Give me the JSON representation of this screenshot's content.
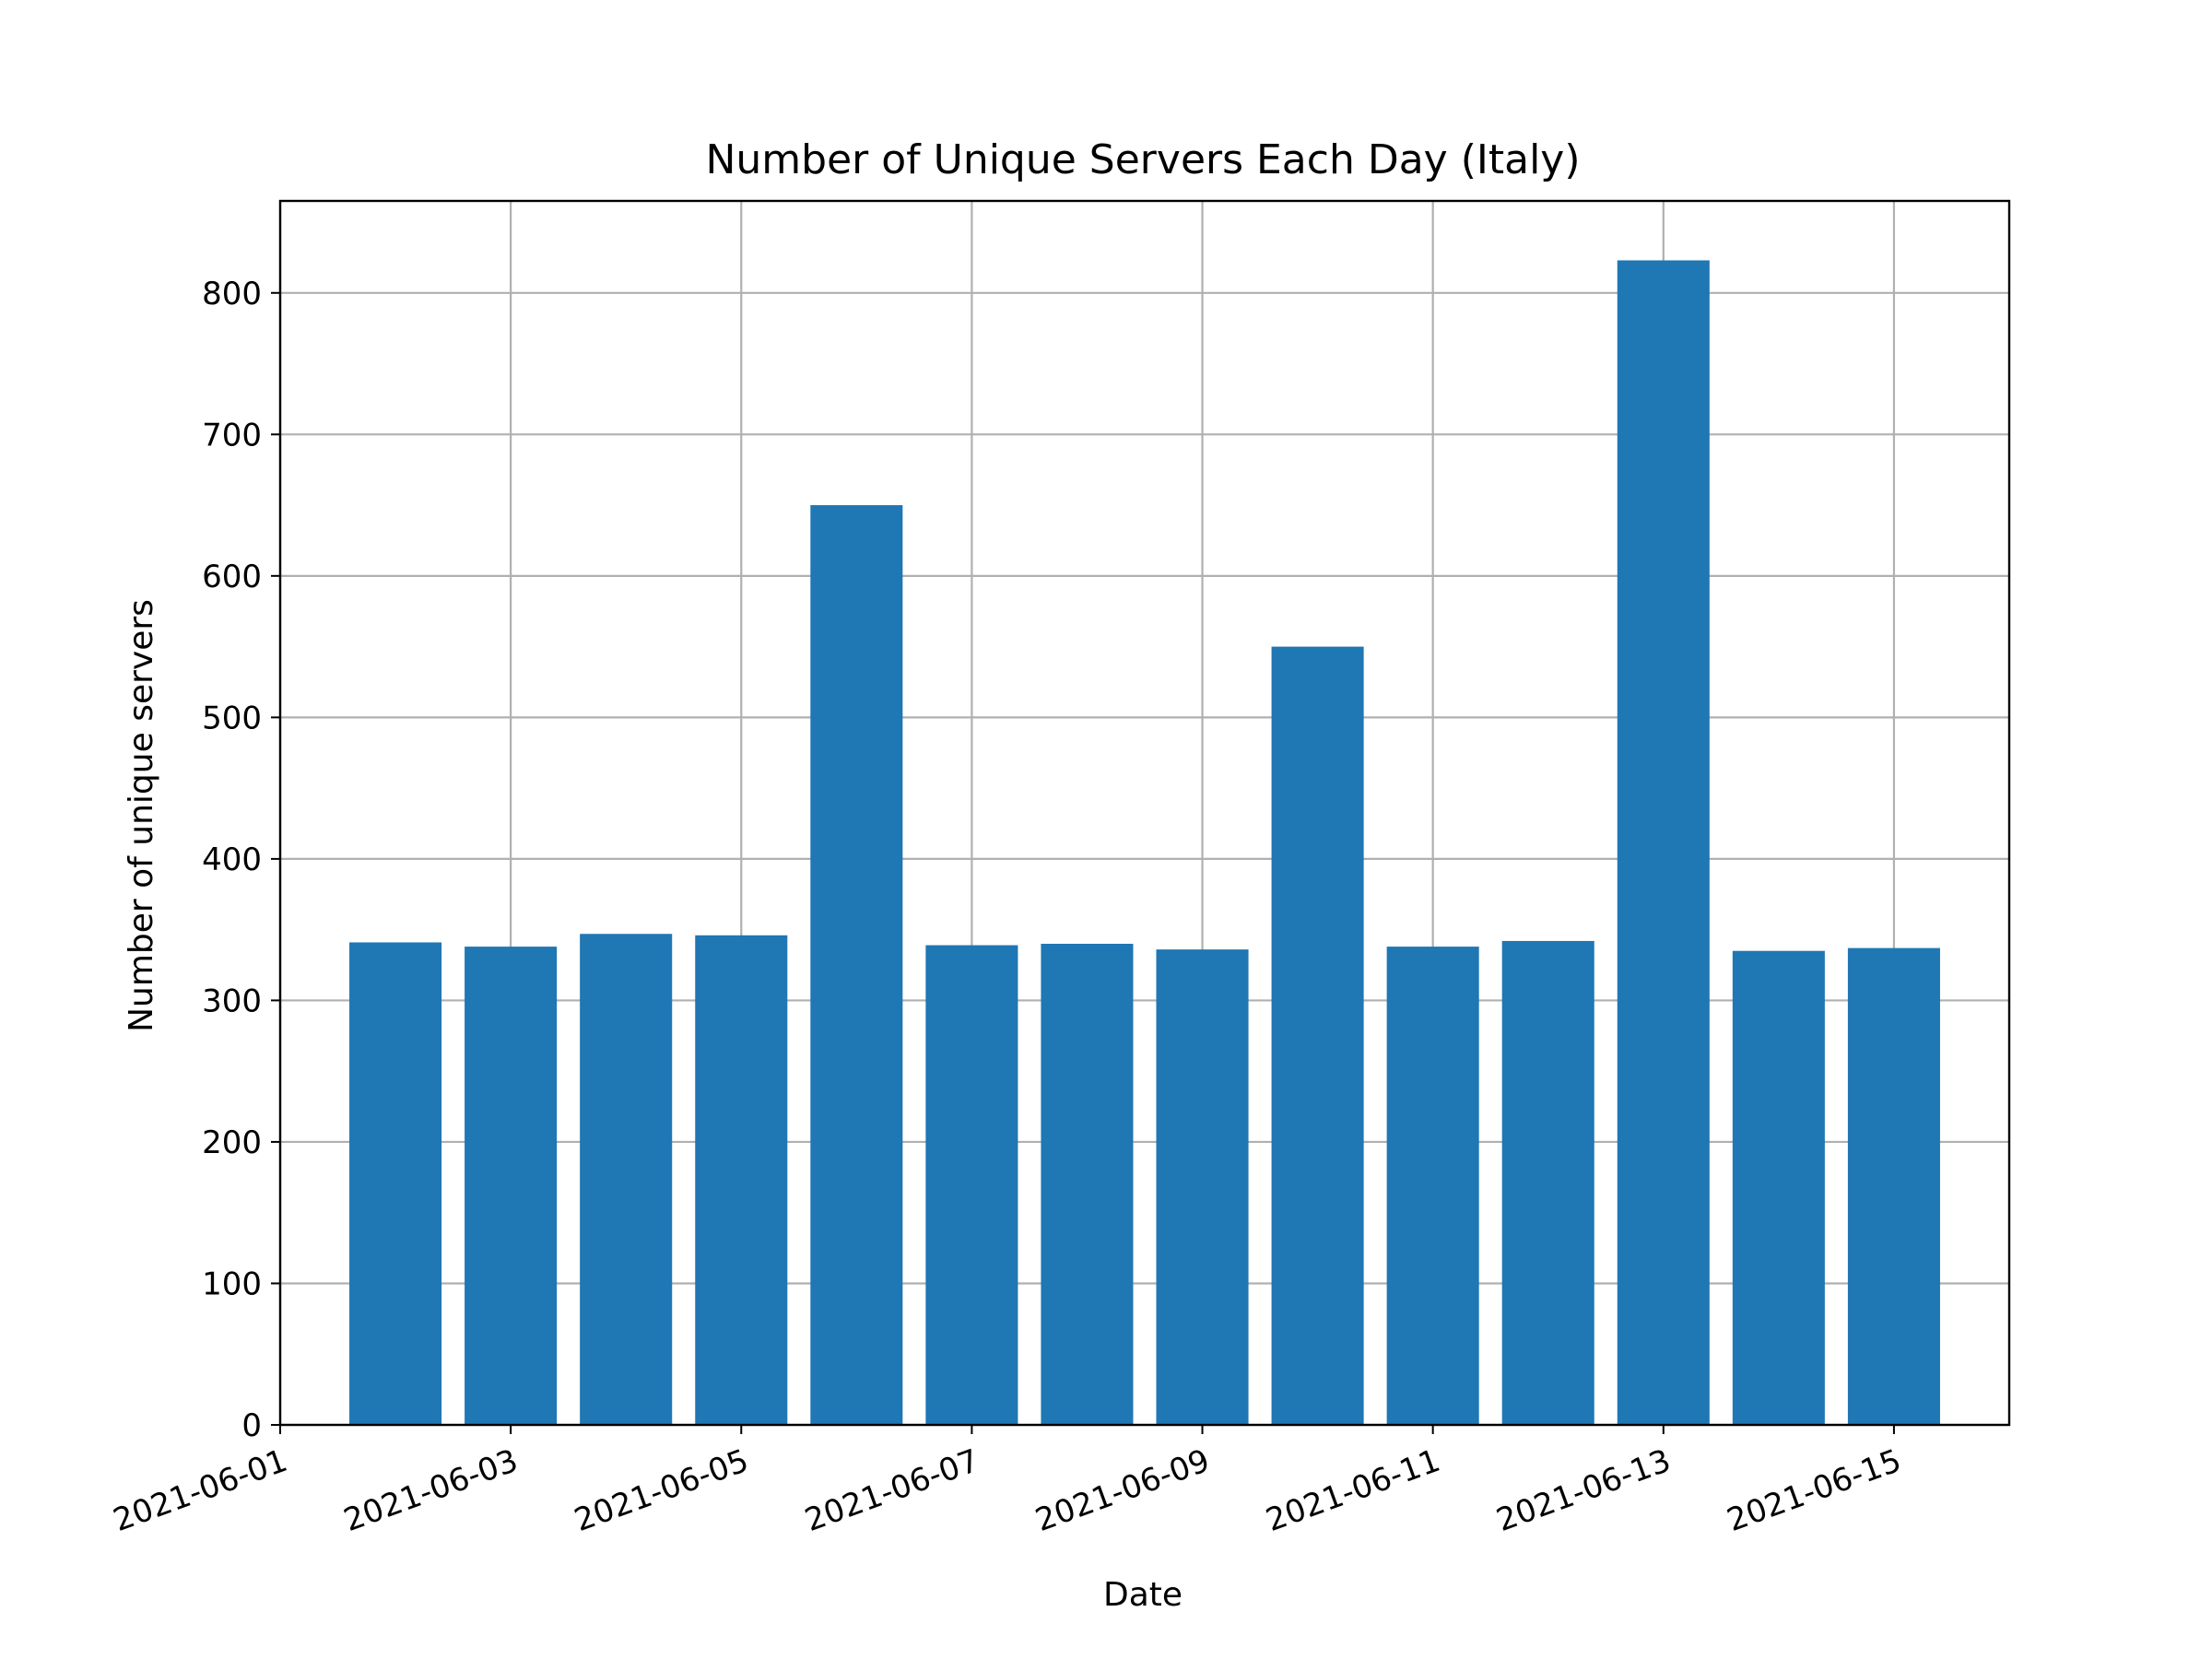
{
  "chart_data": {
    "type": "bar",
    "title": "Number of Unique Servers Each Day (Italy)",
    "xlabel": "Date",
    "ylabel": "Number of unique servers",
    "x_axis": {
      "type": "date",
      "range": [
        "2020-05-31",
        "2021-06-16"
      ],
      "range_note": "",
      "ticks": [
        "2021-06-01",
        "2021-06-03",
        "2021-06-05",
        "2021-06-07",
        "2021-06-09",
        "2021-06-11",
        "2021-06-13",
        "2021-06-15"
      ],
      "tick_label_rotation": "rotated"
    },
    "ylim": [
      0,
      865
    ],
    "yticks": [
      0,
      100,
      200,
      300,
      400,
      500,
      600,
      700,
      800
    ],
    "grid": true,
    "legend": "none",
    "bar_color": "#1f77b4",
    "categories": [
      "2021-06-02",
      "2021-06-03",
      "2021-06-04",
      "2021-06-05",
      "2021-06-06",
      "2021-06-07",
      "2021-06-08",
      "2021-06-09",
      "2021-06-10",
      "2021-06-11",
      "2021-06-12",
      "2021-06-13",
      "2021-06-14",
      "2021-06-15"
    ],
    "values": [
      341,
      338,
      347,
      346,
      650,
      339,
      340,
      336,
      550,
      338,
      342,
      823,
      335,
      337
    ]
  }
}
